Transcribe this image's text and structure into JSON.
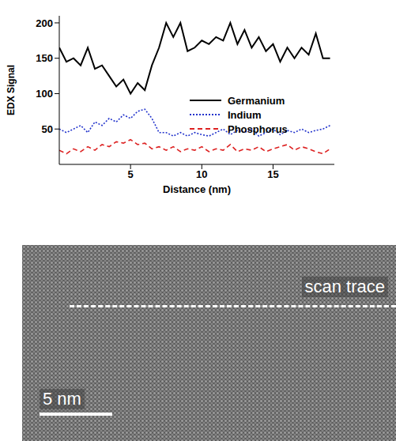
{
  "chart_data": {
    "type": "line",
    "x_label": "Distance (nm)",
    "y_label": "EDX Signal",
    "x": [
      0,
      0.5,
      1,
      1.5,
      2,
      2.5,
      3,
      3.5,
      4,
      4.5,
      5,
      5.5,
      6,
      6.5,
      7,
      7.5,
      8,
      8.5,
      9,
      9.5,
      10,
      10.5,
      11,
      11.5,
      12,
      12.5,
      13,
      13.5,
      14,
      14.5,
      15,
      15.5,
      16,
      16.5,
      17,
      17.5,
      18,
      18.5,
      19
    ],
    "series": [
      {
        "name": "Germanium",
        "color": "#000000",
        "line_style": "solid",
        "values": [
          165,
          145,
          150,
          140,
          165,
          135,
          140,
          125,
          110,
          120,
          100,
          115,
          105,
          140,
          165,
          200,
          180,
          200,
          160,
          165,
          175,
          170,
          180,
          175,
          200,
          170,
          190,
          165,
          180,
          160,
          170,
          145,
          165,
          150,
          165,
          155,
          185,
          150,
          150
        ]
      },
      {
        "name": "Indium",
        "color": "#2233cc",
        "line_style": "dotted",
        "values": [
          50,
          45,
          50,
          55,
          45,
          60,
          55,
          65,
          60,
          70,
          65,
          75,
          78,
          65,
          45,
          45,
          40,
          45,
          40,
          45,
          42,
          40,
          45,
          50,
          42,
          48,
          45,
          50,
          40,
          45,
          50,
          42,
          48,
          45,
          50,
          45,
          48,
          50,
          55
        ]
      },
      {
        "name": "Phosphorus",
        "color": "#dd2222",
        "line_style": "dashed",
        "values": [
          20,
          15,
          22,
          18,
          25,
          20,
          28,
          25,
          32,
          30,
          35,
          28,
          30,
          22,
          25,
          20,
          25,
          18,
          22,
          20,
          25,
          18,
          22,
          20,
          28,
          18,
          22,
          20,
          25,
          18,
          22,
          25,
          28,
          20,
          25,
          22,
          18,
          15,
          22
        ]
      }
    ],
    "xlim": [
      0,
      19.3
    ],
    "xticks": [
      5,
      10,
      15
    ],
    "ylim": [
      0,
      210
    ],
    "yticks": [
      50,
      100,
      150,
      200
    ],
    "legend": "right",
    "grid": false
  },
  "image": {
    "annotations": [
      "scan trace",
      "5 nm"
    ]
  }
}
